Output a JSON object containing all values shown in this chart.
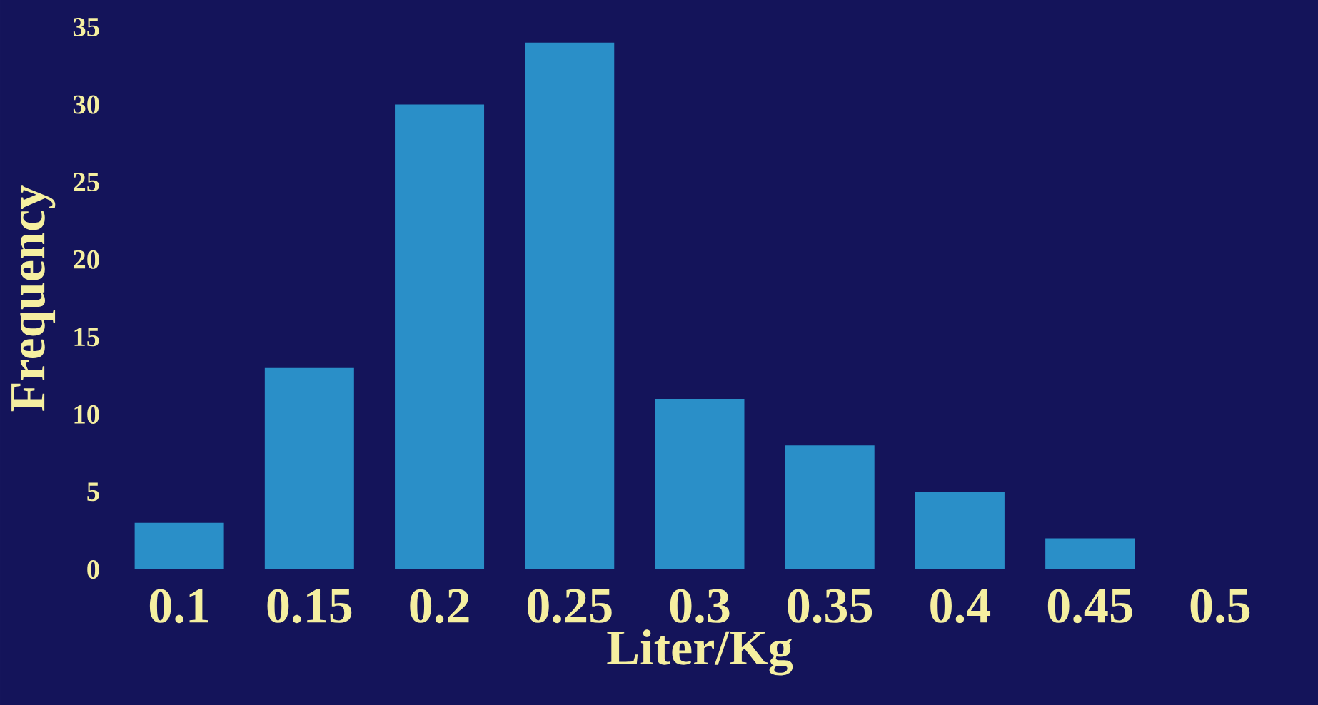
{
  "chart_data": {
    "type": "bar",
    "xlabel": "Liter/Kg",
    "ylabel": "Frequency",
    "categories": [
      "0.1",
      "0.15",
      "0.2",
      "0.25",
      "0.3",
      "0.35",
      "0.4",
      "0.45",
      "0.5"
    ],
    "values": [
      3,
      13,
      30,
      34,
      11,
      8,
      5,
      2,
      0
    ],
    "color": "#2a8fc8",
    "ylim": [
      0,
      35
    ],
    "yticks": [
      0,
      5,
      10,
      15,
      20,
      25,
      30,
      35
    ]
  }
}
